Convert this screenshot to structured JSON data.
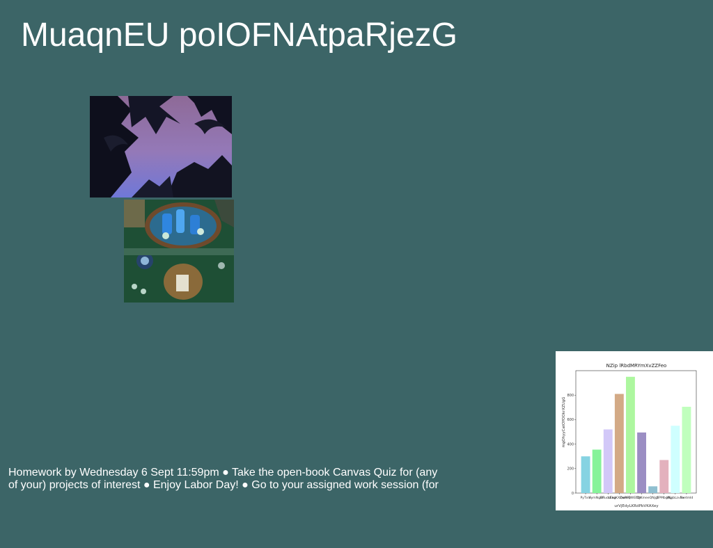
{
  "slide": {
    "title": "MuaqnEU poIOFNAtpaRjezG",
    "body_text": "Homework by Wednesday 6 Sept 11:59pm ● Take the open-book Canvas Quiz for (any of your) projects of interest ● Enjoy Labor Day! ● Go to your assigned work session (for",
    "background_color": "#3c6567"
  },
  "images": [
    {
      "name": "palm-trees-dusk-photo"
    },
    {
      "name": "table-spread-photo"
    }
  ],
  "chart_data": {
    "type": "bar",
    "title": "NZip lRbdMRYmXvZZFeo",
    "xlabel": "urVjEdyLKRdPbVKAXey",
    "ylabel": "mgOhyyCatOYOOkrXZUgG",
    "categories": [
      "PyTxlo",
      "FymNgBF",
      "BRuckExp",
      "LEkqKXQwmQ",
      "ZwRFBWEfQs",
      "CtJKme",
      "eQNjgf",
      "GPMbgNy",
      "kKgbLzv5e",
      "PaetmId"
    ],
    "values": [
      300,
      355,
      520,
      810,
      950,
      495,
      55,
      270,
      550,
      705
    ],
    "colors": [
      "#86d3e2",
      "#86f39a",
      "#d2c8f8",
      "#d3aa86",
      "#adf79f",
      "#9b8ec3",
      "#8fbfd0",
      "#e3b1bd",
      "#cfffff",
      "#c0ffbd"
    ],
    "ylim": [
      0,
      1000
    ],
    "yticks": [
      "0",
      "200",
      "400",
      "600",
      "800"
    ],
    "grid": false,
    "legend": "none"
  }
}
